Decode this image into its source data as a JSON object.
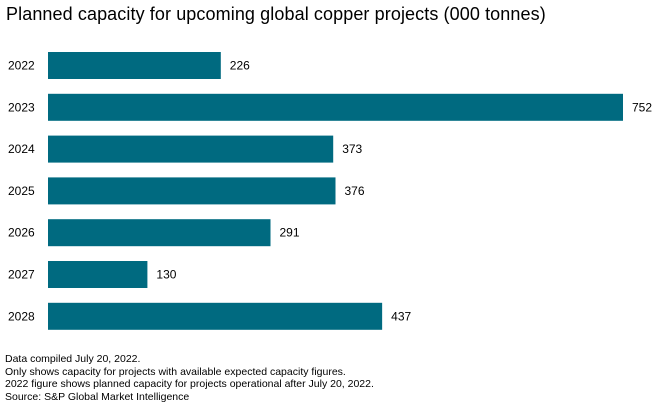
{
  "title": "Planned capacity for upcoming global copper projects (000 tonnes)",
  "chart_data": {
    "type": "bar",
    "orientation": "horizontal",
    "categories": [
      "2022",
      "2023",
      "2024",
      "2025",
      "2026",
      "2027",
      "2028"
    ],
    "values": [
      226,
      752,
      373,
      376,
      291,
      130,
      437
    ],
    "data_labels": [
      "226",
      "752",
      "373",
      "376",
      "291",
      "130",
      "437"
    ],
    "title": "Planned capacity for upcoming global copper projects (000 tonnes)",
    "xlabel": "",
    "ylabel": "",
    "xlim": [
      0,
      752
    ],
    "grid": false,
    "legend": "none",
    "bar_color": "#006a80"
  },
  "footnotes": [
    "Data compiled July 20, 2022.",
    "Only shows capacity for projects with available expected capacity figures.",
    "2022 figure shows planned capacity for projects operational after July 20, 2022.",
    "Source: S&P Global Market Intelligence"
  ]
}
